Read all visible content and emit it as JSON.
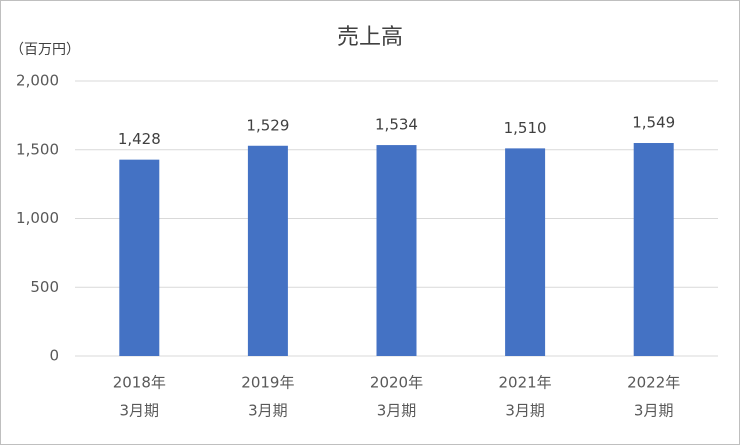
{
  "chart_data": {
    "type": "bar",
    "title": "売上高",
    "unit_label": "（百万円）",
    "categories": [
      [
        "2018年",
        "3月期"
      ],
      [
        "2019年",
        "3月期"
      ],
      [
        "2020年",
        "3月期"
      ],
      [
        "2021年",
        "3月期"
      ],
      [
        "2022年",
        "3月期"
      ]
    ],
    "values": [
      1428,
      1529,
      1534,
      1510,
      1549
    ],
    "value_labels": [
      "1,428",
      "1,529",
      "1,534",
      "1,510",
      "1,549"
    ],
    "color": "#4472c4",
    "ylim": [
      0,
      2000
    ],
    "yticks": [
      0,
      500,
      {
        "value": 1000,
        "label": "1,000"
      },
      {
        "value": 1500,
        "label": "1,500"
      },
      {
        "value": 2000,
        "label": "2,000"
      }
    ],
    "grid": true
  }
}
